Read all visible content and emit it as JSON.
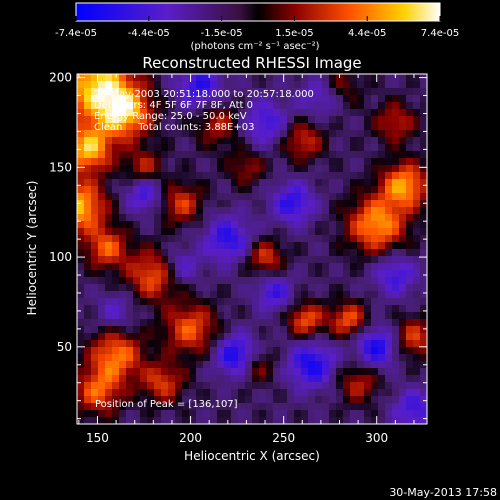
{
  "chart_data": {
    "type": "heatmap",
    "title": "Reconstructed RHESSI Image",
    "xlabel": "Heliocentric X (arcsec)",
    "ylabel": "Heliocentric Y (arcsec)",
    "xlim": [
      139,
      327
    ],
    "ylim": [
      7,
      202
    ],
    "x_ticks": [
      150,
      200,
      250,
      300
    ],
    "y_ticks": [
      50,
      100,
      150,
      200
    ],
    "colorbar": {
      "colormap": "blue-purple-red-yellow-white",
      "range": [
        -7.4e-05,
        7.4e-05
      ],
      "tick_labels": [
        "-7.4e-05",
        "-4.4e-05",
        "-1.5e-05",
        "1.5e-05",
        "4.4e-05",
        "7.4e-05"
      ],
      "units_label": "(photons cm⁻² s⁻¹ asec⁻²)"
    },
    "annotations": {
      "time_range": "25-May-2003 20:51:18.000 to 20:57:18.000",
      "detectors": "Detectors: 4F 5F 6F 7F 8F, Att 0",
      "energy": "Energy Range: 25.0 - 50.0 keV",
      "clean": "Clean     Total counts: 3.88E+03",
      "peak": "Position of Peak = [136,107]"
    },
    "peak_position": [
      136,
      107
    ],
    "total_counts": 3880
  },
  "footer": {
    "date": "30-May-2013 17:58"
  }
}
